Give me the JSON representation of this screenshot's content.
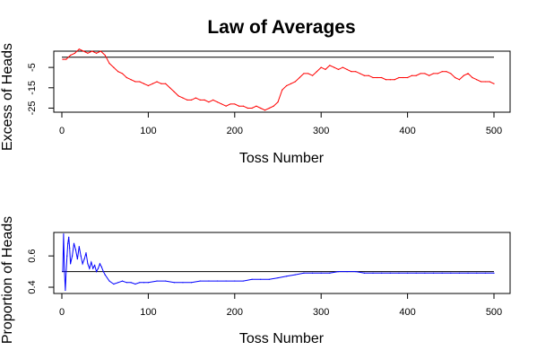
{
  "title": "Law of Averages",
  "chart_data": [
    {
      "type": "line",
      "xlabel": "Toss Number",
      "ylabel": "Excess of Heads",
      "xlim": [
        0,
        500
      ],
      "ylim": [
        -27,
        3
      ],
      "xticks": [
        "0",
        "100",
        "200",
        "300",
        "400",
        "500"
      ],
      "xtick_values": [
        0,
        100,
        200,
        300,
        400,
        500
      ],
      "yticks": [
        "-25",
        "-15",
        "-5"
      ],
      "ytick_values": [
        -25,
        -15,
        -5
      ],
      "reference_line": 0,
      "reference_color": "#000000",
      "grid": false,
      "series": [
        {
          "color": "#ff0000",
          "x": [
            1,
            5,
            10,
            15,
            20,
            25,
            30,
            35,
            40,
            45,
            50,
            55,
            60,
            65,
            70,
            75,
            80,
            85,
            90,
            95,
            100,
            105,
            110,
            115,
            120,
            125,
            130,
            135,
            140,
            145,
            150,
            155,
            160,
            165,
            170,
            175,
            180,
            185,
            190,
            195,
            200,
            205,
            210,
            215,
            220,
            225,
            230,
            235,
            240,
            245,
            250,
            255,
            260,
            265,
            270,
            275,
            280,
            285,
            290,
            295,
            300,
            305,
            310,
            315,
            320,
            325,
            330,
            335,
            340,
            345,
            350,
            355,
            360,
            365,
            370,
            375,
            380,
            385,
            390,
            395,
            400,
            405,
            410,
            415,
            420,
            425,
            430,
            435,
            440,
            445,
            450,
            455,
            460,
            465,
            470,
            475,
            480,
            485,
            490,
            495,
            500
          ],
          "y": [
            -1,
            -1,
            1,
            2,
            4,
            3,
            2,
            3,
            2,
            3,
            1,
            -3,
            -5,
            -7,
            -8,
            -10,
            -11,
            -12,
            -12,
            -13,
            -14,
            -13,
            -12,
            -13,
            -13,
            -15,
            -17,
            -19,
            -20,
            -21,
            -21,
            -20,
            -21,
            -21,
            -22,
            -21,
            -22,
            -23,
            -24,
            -23,
            -23,
            -24,
            -24,
            -25,
            -25,
            -24,
            -25,
            -26,
            -25,
            -24,
            -22,
            -16,
            -14,
            -13,
            -12,
            -10,
            -8,
            -8,
            -9,
            -7,
            -5,
            -6,
            -4,
            -5,
            -6,
            -5,
            -6,
            -7,
            -7,
            -8,
            -9,
            -9,
            -10,
            -10,
            -10,
            -11,
            -11,
            -11,
            -10,
            -10,
            -10,
            -9,
            -9,
            -8,
            -8,
            -9,
            -8,
            -8,
            -7,
            -7,
            -8,
            -10,
            -11,
            -9,
            -8,
            -10,
            -11,
            -12,
            -12,
            -12,
            -13
          ]
        }
      ]
    },
    {
      "type": "line",
      "xlabel": "Toss Number",
      "ylabel": "Proportion of Heads",
      "xlim": [
        0,
        500
      ],
      "ylim": [
        0.36,
        0.75
      ],
      "xticks": [
        "0",
        "100",
        "200",
        "300",
        "400",
        "500"
      ],
      "xtick_values": [
        0,
        100,
        200,
        300,
        400,
        500
      ],
      "yticks": [
        "0.4",
        "0.6"
      ],
      "ytick_values": [
        0.4,
        0.6
      ],
      "reference_line": 0.5,
      "reference_color": "#000000",
      "grid": false,
      "series": [
        {
          "color": "#0000ff",
          "x": [
            1,
            2,
            3,
            4,
            5,
            6,
            7,
            8,
            9,
            10,
            12,
            14,
            16,
            18,
            20,
            22,
            24,
            26,
            28,
            30,
            32,
            34,
            36,
            38,
            40,
            42,
            44,
            46,
            48,
            50,
            55,
            60,
            65,
            70,
            75,
            80,
            85,
            90,
            95,
            100,
            110,
            120,
            130,
            140,
            150,
            160,
            170,
            180,
            190,
            200,
            210,
            220,
            230,
            240,
            250,
            260,
            270,
            280,
            290,
            300,
            310,
            320,
            330,
            340,
            350,
            360,
            370,
            380,
            390,
            400,
            410,
            420,
            430,
            440,
            450,
            460,
            470,
            480,
            490,
            500
          ],
          "y": [
            0.5,
            0.74,
            0.5,
            0.38,
            0.5,
            0.6,
            0.68,
            0.72,
            0.65,
            0.55,
            0.6,
            0.68,
            0.64,
            0.58,
            0.66,
            0.6,
            0.55,
            0.58,
            0.62,
            0.55,
            0.52,
            0.56,
            0.52,
            0.54,
            0.5,
            0.52,
            0.55,
            0.53,
            0.5,
            0.48,
            0.44,
            0.42,
            0.43,
            0.44,
            0.43,
            0.43,
            0.42,
            0.43,
            0.43,
            0.43,
            0.44,
            0.44,
            0.43,
            0.43,
            0.43,
            0.44,
            0.44,
            0.44,
            0.44,
            0.44,
            0.44,
            0.45,
            0.45,
            0.45,
            0.46,
            0.47,
            0.48,
            0.49,
            0.49,
            0.49,
            0.49,
            0.5,
            0.5,
            0.5,
            0.49,
            0.49,
            0.49,
            0.49,
            0.49,
            0.49,
            0.49,
            0.49,
            0.49,
            0.49,
            0.49,
            0.49,
            0.49,
            0.49,
            0.49,
            0.49
          ]
        }
      ]
    }
  ]
}
